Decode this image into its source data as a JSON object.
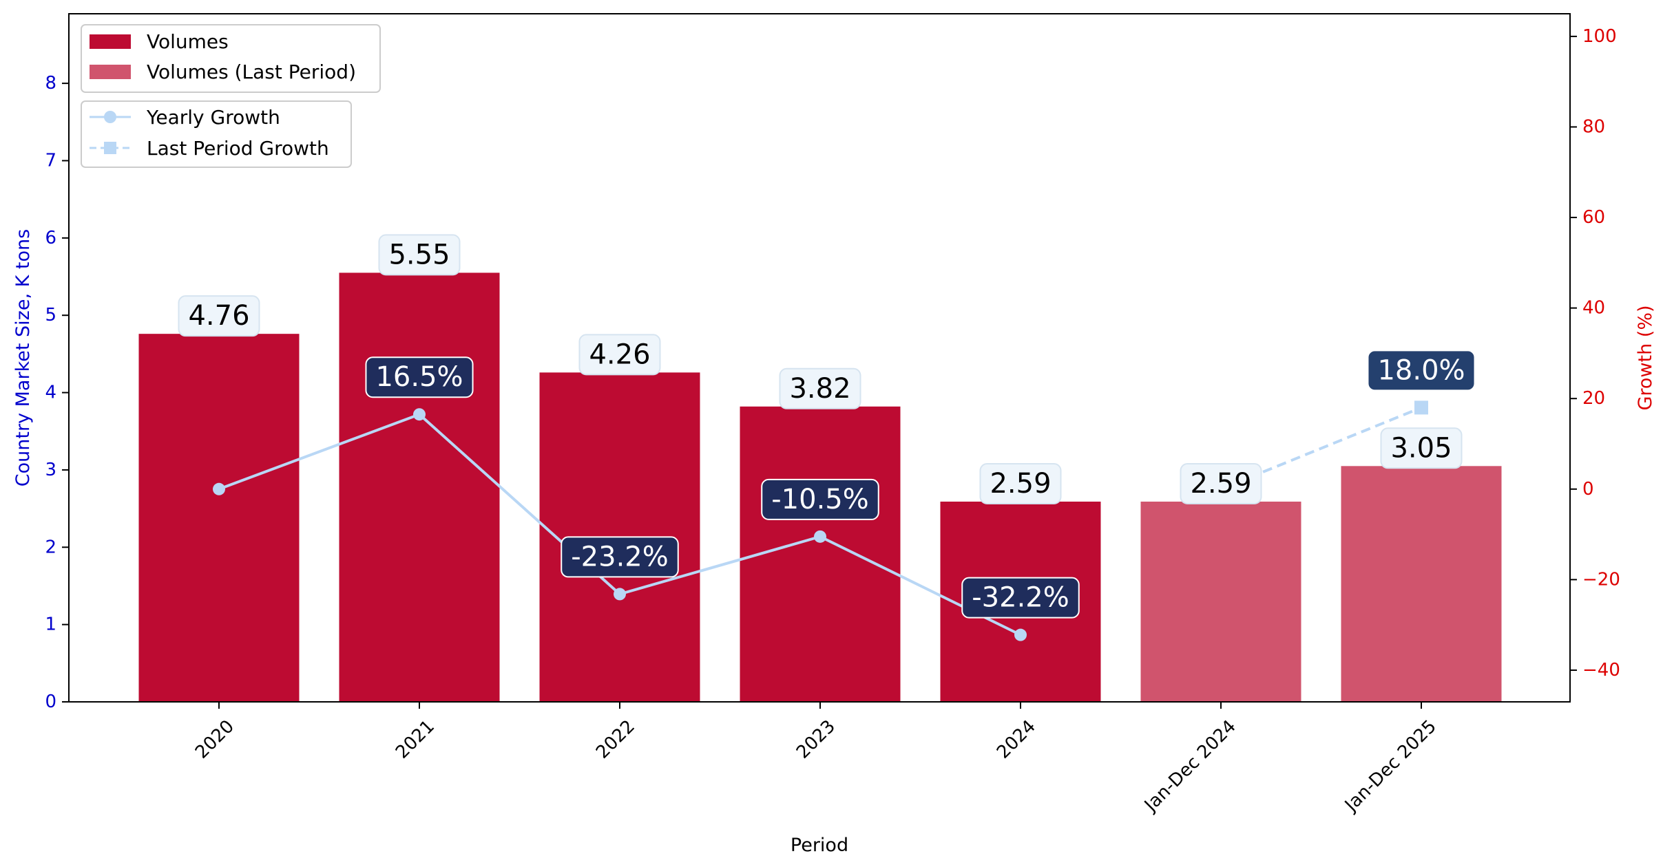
{
  "chart_data": {
    "type": "bar",
    "categories": [
      "2020",
      "2021",
      "2022",
      "2023",
      "2024",
      "Jan-Dec 2024",
      "Jan-Dec 2025"
    ],
    "series": [
      {
        "name": "Volumes",
        "kind": "bar",
        "axis": "left",
        "values": [
          4.76,
          5.55,
          4.26,
          3.82,
          2.59,
          null,
          null
        ],
        "labels": [
          "4.76",
          "5.55",
          "4.26",
          "3.82",
          "2.59",
          "",
          ""
        ]
      },
      {
        "name": "Volumes (Last Period)",
        "kind": "bar",
        "axis": "left",
        "values": [
          null,
          null,
          null,
          null,
          null,
          2.59,
          3.05
        ],
        "labels": [
          "",
          "",
          "",
          "",
          "",
          "2.59",
          "3.05"
        ]
      },
      {
        "name": "Yearly Growth",
        "kind": "line",
        "marker": "circle",
        "axis": "right",
        "values": [
          0,
          16.5,
          -23.2,
          -10.5,
          -32.2,
          null,
          null
        ],
        "labels": [
          "",
          "16.5%",
          "-23.2%",
          "-10.5%",
          "-32.2%",
          "",
          ""
        ]
      },
      {
        "name": "Last Period Growth",
        "kind": "line",
        "style": "dashed",
        "marker": "square",
        "axis": "right",
        "values": [
          null,
          null,
          null,
          null,
          null,
          0,
          18.0
        ],
        "labels": [
          "",
          "",
          "",
          "",
          "",
          "",
          "18.0%"
        ]
      }
    ],
    "xlabel": "Period",
    "ylabel": "Country Market Size, K tons",
    "y2label": "Growth (%)",
    "ylim": [
      0,
      8.9
    ],
    "y2lim": [
      -47,
      105
    ],
    "yticks": [
      "0",
      "1",
      "2",
      "3",
      "4",
      "5",
      "6",
      "7",
      "8"
    ],
    "y2ticks": [
      "−40",
      "−20",
      "0",
      "20",
      "40",
      "60",
      "80",
      "100"
    ],
    "legend_bars_placement": "top-left",
    "legend_lines_placement": "top-left",
    "grid": false,
    "colors": {
      "volumes": "#bd0b32",
      "volumes_last": "#d0546d",
      "growth_line": "#b9d7f5",
      "left_axis": "#0000cc",
      "right_axis": "#dd0000",
      "growth_box": "#1f2d5c",
      "growth_box_last": "#24406e",
      "vol_box": "#eef5fb"
    }
  }
}
